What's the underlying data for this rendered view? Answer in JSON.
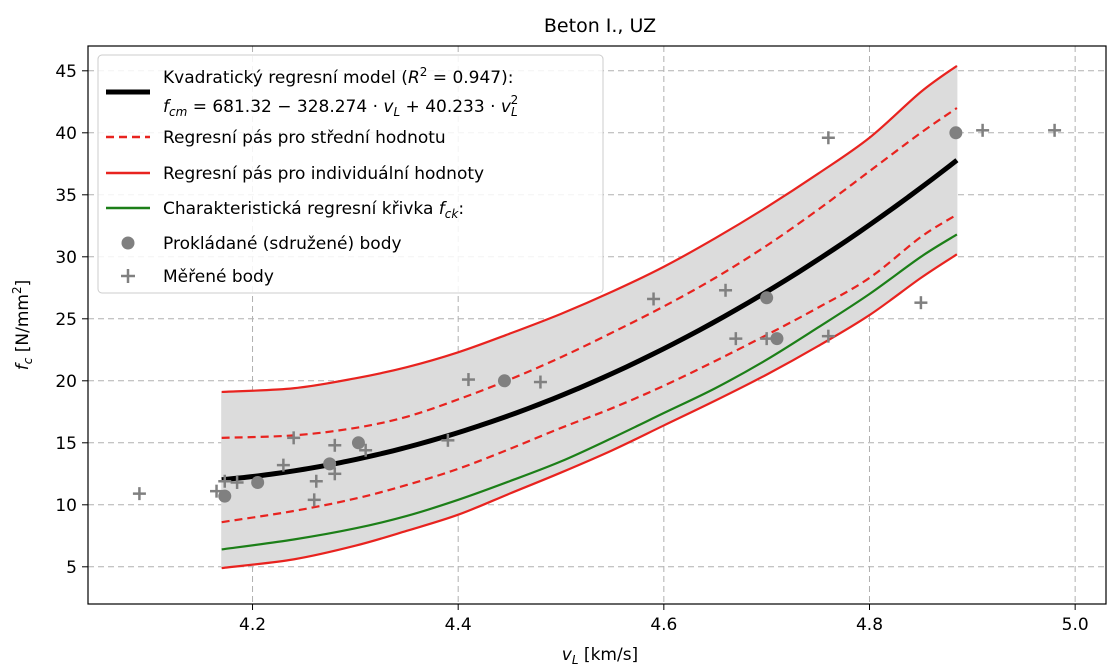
{
  "chart_data": {
    "type": "scatter",
    "title": "Beton I., UZ",
    "xlabel": "v_L [km/s]",
    "ylabel": "f_c [N/mm²]",
    "xlim": [
      4.04,
      5.03
    ],
    "ylim": [
      2.0,
      47.0
    ],
    "x_ticks": [
      "4.2",
      "4.4",
      "4.6",
      "4.8",
      "5.0"
    ],
    "y_ticks": [
      "5",
      "10",
      "15",
      "20",
      "25",
      "30",
      "35",
      "40",
      "45"
    ],
    "grid": true,
    "legend_position": "top-left",
    "model": {
      "a0": 681.32,
      "a1": -328.274,
      "a2": 40.233,
      "x_min": 4.17,
      "x_max": 4.885
    },
    "bands": {
      "x": [
        4.17,
        4.24,
        4.3,
        4.35,
        4.4,
        4.45,
        4.5,
        4.55,
        4.6,
        4.65,
        4.7,
        4.75,
        4.8,
        4.85,
        4.885
      ],
      "mean_upper": [
        15.4,
        15.6,
        16.2,
        17.1,
        18.5,
        20.1,
        21.9,
        23.9,
        26.0,
        28.3,
        30.9,
        33.8,
        36.9,
        40.0,
        42.0
      ],
      "mean_lower": [
        8.6,
        9.5,
        10.5,
        11.6,
        12.9,
        14.5,
        16.2,
        17.8,
        19.6,
        21.6,
        23.7,
        25.9,
        28.3,
        31.6,
        33.4
      ],
      "indiv_upper": [
        19.1,
        19.4,
        20.2,
        21.1,
        22.3,
        23.8,
        25.4,
        27.2,
        29.2,
        31.5,
        34.0,
        36.7,
        39.6,
        43.3,
        45.4
      ],
      "indiv_lower": [
        4.9,
        5.6,
        6.7,
        7.9,
        9.2,
        10.9,
        12.6,
        14.4,
        16.4,
        18.4,
        20.5,
        22.8,
        25.3,
        28.3,
        30.2
      ],
      "characteristic": [
        6.4,
        7.2,
        8.1,
        9.1,
        10.4,
        11.9,
        13.5,
        15.4,
        17.4,
        19.4,
        21.7,
        24.3,
        27.0,
        30.0,
        31.8
      ]
    },
    "series": [
      {
        "name": "Prokládané (sdružené) body",
        "marker": "circle",
        "color": "#808080",
        "x": [
          4.173,
          4.205,
          4.275,
          4.303,
          4.445,
          4.7,
          4.71,
          4.884
        ],
        "y": [
          10.7,
          11.8,
          13.3,
          15.0,
          20.0,
          26.7,
          23.4,
          40.0
        ]
      },
      {
        "name": "Měřené body",
        "marker": "plus",
        "color": "#808080",
        "x": [
          4.09,
          4.165,
          4.173,
          4.185,
          4.23,
          4.24,
          4.26,
          4.262,
          4.28,
          4.28,
          4.31,
          4.39,
          4.41,
          4.48,
          4.59,
          4.66,
          4.67,
          4.7,
          4.76,
          4.76,
          4.85,
          4.91,
          4.98
        ],
        "y": [
          10.9,
          11.1,
          11.9,
          11.8,
          13.2,
          15.4,
          10.4,
          11.9,
          14.8,
          12.5,
          14.4,
          15.2,
          20.1,
          19.9,
          26.6,
          27.3,
          23.4,
          23.4,
          39.6,
          23.6,
          26.3,
          40.2,
          40.2
        ]
      }
    ],
    "legend": {
      "model_line1": "Kvadratický regresní model (R² = 0.947):",
      "model_line2": "f_cm = 681.32 − 328.274 · v_L + 40.233 · v_L²",
      "mean_band": "Regresní pás pro střední hodnotu",
      "indiv_band": "Regresní pás pro individuální hodnoty",
      "characteristic": "Charakteristická regresní křivka f_ck:",
      "fitted_points": "Prokládané (sdružené) body",
      "measured_points": "Měřené body"
    },
    "colors": {
      "model": "#000000",
      "bands": "#e8231f",
      "characteristic": "#1c7f18",
      "fill": "#dcdcdc",
      "points": "#808080"
    }
  }
}
